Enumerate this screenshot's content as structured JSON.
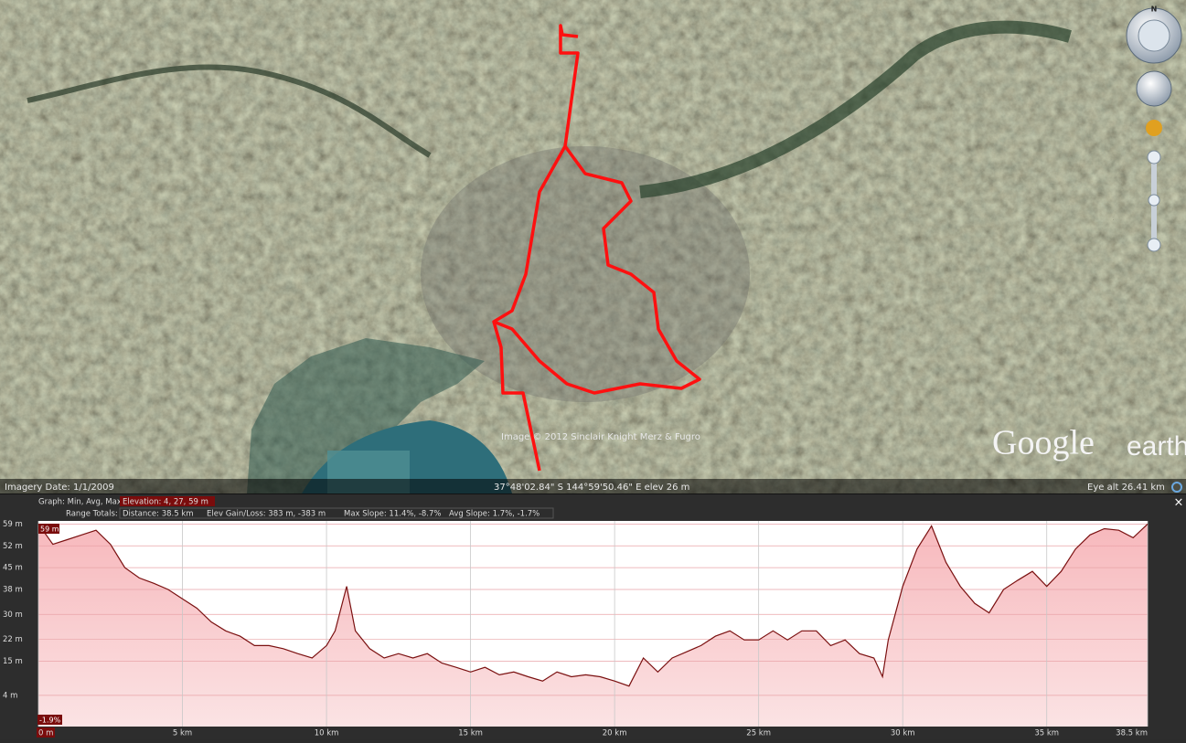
{
  "map": {
    "imagery_date": "Imagery Date: 1/1/2009",
    "copyright": "Image © 2012 Sinclair Knight Merz & Fugro",
    "coordinates": "37°48'02.84\" S 144°59'50.46\" E elev   26 m",
    "eye_alt": "Eye alt   26.41 km",
    "logo_google": "Google",
    "logo_earth": "earth",
    "compass_north": "N"
  },
  "graph_header": {
    "graph_label": "Graph: Min, Avg, Max",
    "elevation": "Elevation: 4, 27, 59 m",
    "range_label": "Range Totals:",
    "distance": "Distance: 38.5 km",
    "gain_loss": "Elev Gain/Loss: 383 m, -383 m",
    "max_slope": "Max Slope: 11.4%, -8.7%",
    "avg_slope": "Avg Slope: 1.7%, -1.7%",
    "close": "×"
  },
  "elevation_profile": {
    "type": "area",
    "cursor_label": "59 m",
    "slope_label": "-1.9%",
    "x": [
      0,
      0.5,
      1,
      1.5,
      2,
      2.5,
      3,
      3.5,
      4,
      4.5,
      5,
      5.5,
      6,
      6.5,
      7,
      7.5,
      8,
      8.5,
      9,
      9.5,
      10,
      10.3,
      10.7,
      11,
      11.5,
      12,
      12.5,
      13,
      13.5,
      14,
      14.5,
      15,
      15.5,
      16,
      16.5,
      17,
      17.5,
      18,
      18.5,
      19,
      19.5,
      20,
      20.5,
      21,
      21.5,
      22,
      22.5,
      23,
      23.5,
      24,
      24.5,
      25,
      25.5,
      26,
      26.5,
      27,
      27.5,
      28,
      28.5,
      29,
      29.3,
      29.5,
      30,
      30.5,
      31,
      31.5,
      32,
      32.5,
      33,
      33.5,
      34,
      34.5,
      35,
      35.5,
      36,
      36.5,
      37,
      37.5,
      38,
      38.5
    ],
    "values": [
      59,
      52.5,
      54,
      55.5,
      57,
      52.5,
      45,
      41.7,
      40,
      38,
      35,
      32,
      27.6,
      24.7,
      23,
      20,
      20,
      19,
      17.4,
      16,
      20,
      24.7,
      39,
      24.7,
      19,
      16,
      17.4,
      16,
      17.4,
      14.4,
      13,
      11.5,
      13,
      10.6,
      11.5,
      10,
      8.6,
      11.5,
      10,
      10.6,
      10,
      8.6,
      7,
      16,
      11.5,
      16,
      18,
      20,
      23,
      24.7,
      21.8,
      21.8,
      24.7,
      21.8,
      24.7,
      24.7,
      20,
      21.8,
      17.4,
      16,
      10,
      21.8,
      39,
      51,
      58.4,
      46.7,
      39,
      33.5,
      30.5,
      38,
      41,
      43.8,
      39,
      43.8,
      51,
      55.5,
      57.5,
      57,
      54.6,
      59
    ],
    "color": "#7a1010",
    "xlim": [
      0,
      38.5
    ],
    "ylim": [
      -6,
      60
    ],
    "xticks": [
      {
        "value": 0,
        "label": "0 m"
      },
      {
        "value": 5,
        "label": "5 km"
      },
      {
        "value": 10,
        "label": "10 km"
      },
      {
        "value": 15,
        "label": "15 km"
      },
      {
        "value": 20,
        "label": "20 km"
      },
      {
        "value": 25,
        "label": "25 km"
      },
      {
        "value": 30,
        "label": "30 km"
      },
      {
        "value": 35,
        "label": "35 km"
      },
      {
        "value": 38.5,
        "label": "38.5 km"
      }
    ],
    "yticks": [
      {
        "value": 59,
        "label": "59 m"
      },
      {
        "value": 52,
        "label": "52 m"
      },
      {
        "value": 45,
        "label": "45 m"
      },
      {
        "value": 38,
        "label": "38 m"
      },
      {
        "value": 30,
        "label": "30 m"
      },
      {
        "value": 22,
        "label": "22 m"
      },
      {
        "value": 15,
        "label": "15 m"
      },
      {
        "value": 4,
        "label": "4 m"
      }
    ],
    "grid": true
  }
}
